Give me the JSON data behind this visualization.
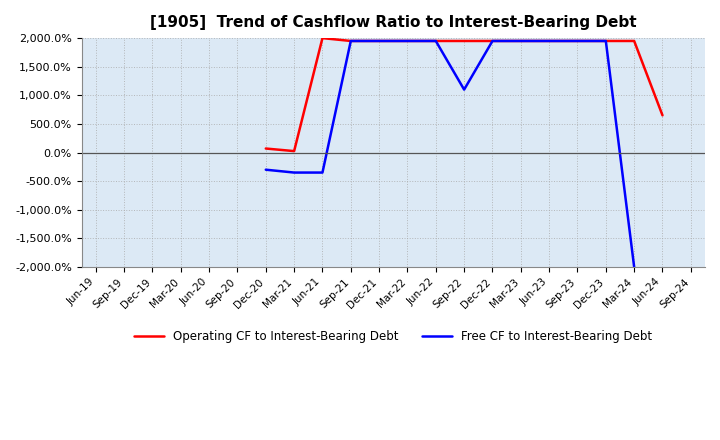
{
  "title": "[1905]  Trend of Cashflow Ratio to Interest-Bearing Debt",
  "ylim": [
    -2000,
    2000
  ],
  "yticks": [
    -2000,
    -1500,
    -1000,
    -500,
    0,
    500,
    1000,
    1500,
    2000
  ],
  "x_labels": [
    "Jun-19",
    "Sep-19",
    "Dec-19",
    "Mar-20",
    "Jun-20",
    "Sep-20",
    "Dec-20",
    "Mar-21",
    "Jun-21",
    "Sep-21",
    "Dec-21",
    "Mar-22",
    "Jun-22",
    "Sep-22",
    "Dec-22",
    "Mar-23",
    "Jun-23",
    "Sep-23",
    "Dec-23",
    "Mar-24",
    "Jun-24",
    "Sep-24"
  ],
  "op_x": [
    6,
    7,
    8,
    9,
    10,
    11,
    12,
    13,
    14,
    15,
    16,
    17,
    18,
    19,
    20
  ],
  "op_y": [
    70,
    25,
    2000,
    1950,
    1950,
    1950,
    1950,
    1950,
    1950,
    1950,
    1950,
    1950,
    1950,
    1950,
    650
  ],
  "free_x": [
    6,
    7,
    8,
    9,
    10,
    11,
    12,
    13,
    14,
    15,
    16,
    17,
    18,
    19
  ],
  "free_y": [
    -300,
    -350,
    -350,
    1950,
    1950,
    1950,
    1950,
    1100,
    1950,
    1950,
    1950,
    1950,
    1950,
    -2000
  ],
  "op_color": "#ff0000",
  "free_color": "#0000ff",
  "line_width": 1.8,
  "legend_op": "Operating CF to Interest-Bearing Debt",
  "legend_free": "Free CF to Interest-Bearing Debt",
  "grid_color": "#aaaaaa",
  "bg_color": "#ffffff",
  "plot_bg_color": "#dce9f5",
  "title_fontsize": 11
}
